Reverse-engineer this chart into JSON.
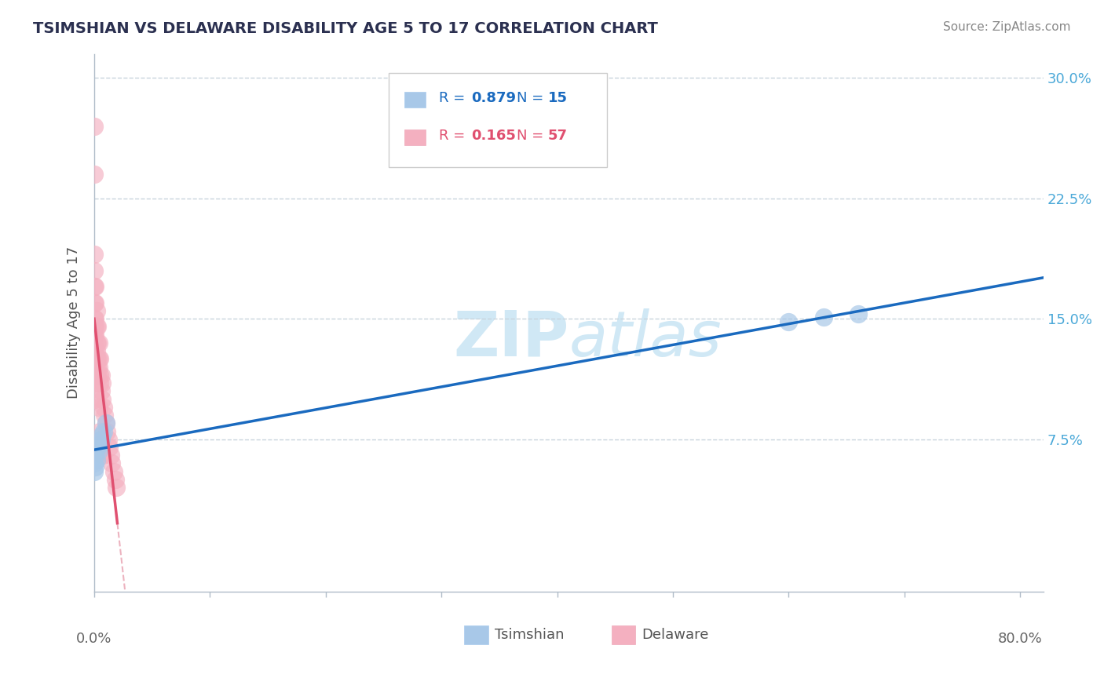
{
  "title": "TSIMSHIAN VS DELAWARE DISABILITY AGE 5 TO 17 CORRELATION CHART",
  "source": "Source: ZipAtlas.com",
  "ylabel": "Disability Age 5 to 17",
  "ytick_vals": [
    0.075,
    0.15,
    0.225,
    0.3
  ],
  "ytick_labels": [
    "7.5%",
    "15.0%",
    "22.5%",
    "30.0%"
  ],
  "xlim": [
    0.0,
    0.82
  ],
  "ylim": [
    -0.02,
    0.315
  ],
  "tsimshian_R": "0.879",
  "tsimshian_N": "15",
  "delaware_R": "0.165",
  "delaware_N": "57",
  "tsimshian_scatter_color": "#a8c8e8",
  "delaware_scatter_color": "#f4b0c0",
  "tsimshian_line_color": "#1a6abf",
  "delaware_line_color": "#e05070",
  "delaware_dash_color": "#e8a0b0",
  "legend_tsim_color": "#1a6abf",
  "legend_del_color": "#e05070",
  "watermark_color": "#d0e8f5",
  "tsimshian_x": [
    0.0,
    0.0,
    0.001,
    0.001,
    0.002,
    0.003,
    0.004,
    0.005,
    0.006,
    0.007,
    0.008,
    0.01,
    0.6,
    0.63,
    0.66
  ],
  "tsimshian_y": [
    0.055,
    0.06,
    0.058,
    0.065,
    0.062,
    0.07,
    0.068,
    0.072,
    0.075,
    0.078,
    0.08,
    0.085,
    0.148,
    0.151,
    0.153
  ],
  "delaware_x": [
    0.0,
    0.0,
    0.0,
    0.0,
    0.0,
    0.0,
    0.0,
    0.0,
    0.0,
    0.0,
    0.0,
    0.0,
    0.0,
    0.001,
    0.001,
    0.001,
    0.001,
    0.001,
    0.002,
    0.002,
    0.002,
    0.002,
    0.002,
    0.003,
    0.003,
    0.003,
    0.003,
    0.004,
    0.004,
    0.004,
    0.005,
    0.005,
    0.005,
    0.006,
    0.006,
    0.007,
    0.007,
    0.008,
    0.009,
    0.01,
    0.011,
    0.012,
    0.013,
    0.014,
    0.015,
    0.017,
    0.018,
    0.019,
    0.0,
    0.0,
    0.001,
    0.002,
    0.003,
    0.004,
    0.005,
    0.006,
    0.007
  ],
  "delaware_y": [
    0.27,
    0.24,
    0.19,
    0.18,
    0.17,
    0.16,
    0.15,
    0.145,
    0.14,
    0.135,
    0.13,
    0.125,
    0.12,
    0.17,
    0.16,
    0.15,
    0.145,
    0.14,
    0.155,
    0.145,
    0.135,
    0.13,
    0.125,
    0.145,
    0.135,
    0.125,
    0.12,
    0.135,
    0.125,
    0.12,
    0.125,
    0.115,
    0.11,
    0.115,
    0.105,
    0.11,
    0.1,
    0.095,
    0.09,
    0.085,
    0.08,
    0.075,
    0.07,
    0.065,
    0.06,
    0.055,
    0.05,
    0.045,
    0.11,
    0.1,
    0.115,
    0.115,
    0.115,
    0.095,
    0.08,
    0.075,
    0.065
  ]
}
